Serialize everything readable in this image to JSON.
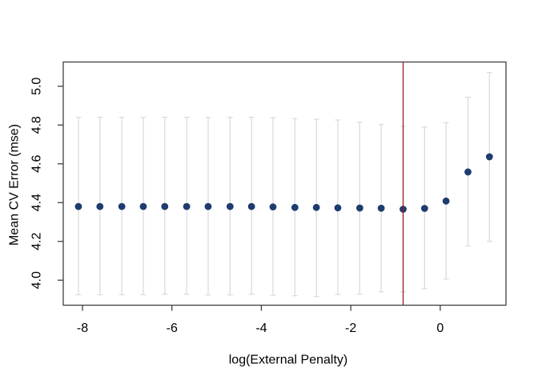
{
  "chart_data": {
    "type": "scatter",
    "title": "",
    "xlabel": "log(External Penalty)",
    "ylabel": "Mean CV Error (mse)",
    "xlim": [
      -8.43,
      1.47
    ],
    "ylim": [
      3.871,
      5.125
    ],
    "grid": false,
    "legend": false,
    "x_ticks": {
      "values": [
        -8,
        -6,
        -4,
        -2,
        0
      ],
      "labels": [
        "-8",
        "-6",
        "-4",
        "-2",
        "0"
      ]
    },
    "y_ticks": {
      "values": [
        4.0,
        4.2,
        4.4,
        4.6,
        4.8,
        5.0
      ],
      "labels": [
        "4.0",
        "4.2",
        "4.4",
        "4.6",
        "4.8",
        "5.0"
      ]
    },
    "vline": {
      "x": -0.83,
      "color": "#9b1b20"
    },
    "series": [
      {
        "name": "mean-cv-error",
        "marker": "filled-circle",
        "marker_color": "#1e3c6e",
        "errorbar_color": "#dcdcdc",
        "x": [
          -8.09,
          -7.61,
          -7.12,
          -6.64,
          -6.16,
          -5.67,
          -5.19,
          -4.7,
          -4.22,
          -3.74,
          -3.25,
          -2.77,
          -2.29,
          -1.8,
          -1.32,
          -0.83,
          -0.35,
          0.13,
          0.62,
          1.1
        ],
        "y": [
          4.38,
          4.38,
          4.38,
          4.38,
          4.38,
          4.38,
          4.38,
          4.38,
          4.38,
          4.378,
          4.375,
          4.375,
          4.373,
          4.372,
          4.371,
          4.366,
          4.37,
          4.408,
          4.558,
          4.636
        ],
        "lower": [
          3.925,
          3.925,
          3.925,
          3.925,
          3.928,
          3.928,
          3.924,
          3.924,
          3.928,
          3.922,
          3.92,
          3.916,
          3.926,
          3.928,
          3.94,
          3.94,
          3.956,
          4.006,
          4.176,
          4.2
        ],
        "upper": [
          4.84,
          4.84,
          4.84,
          4.84,
          4.84,
          4.84,
          4.84,
          4.84,
          4.84,
          4.838,
          4.833,
          4.83,
          4.826,
          4.815,
          4.803,
          4.793,
          4.789,
          4.812,
          4.943,
          5.071
        ]
      }
    ],
    "colors": {
      "axis": "#3f3f3f",
      "text": "#000000",
      "background": "#ffffff"
    }
  }
}
